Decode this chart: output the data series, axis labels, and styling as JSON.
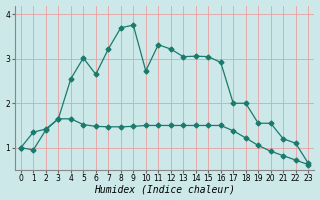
{
  "xlabel": "Humidex (Indice chaleur)",
  "bg_color": "#cce8e8",
  "line_color": "#1a7a6e",
  "grid_color_v": "#e8a0a0",
  "grid_color_h": "#e8a0a0",
  "xlim": [
    -0.5,
    23.5
  ],
  "ylim": [
    0.5,
    4.2
  ],
  "yticks": [
    1,
    2,
    3,
    4
  ],
  "xticks": [
    0,
    1,
    2,
    3,
    4,
    5,
    6,
    7,
    8,
    9,
    10,
    11,
    12,
    13,
    14,
    15,
    16,
    17,
    18,
    19,
    20,
    21,
    22,
    23
  ],
  "line1_x": [
    0,
    1,
    2,
    3,
    4,
    5,
    6,
    7,
    8,
    9,
    10,
    11,
    12,
    13,
    14,
    15,
    16,
    17,
    18,
    19,
    20,
    21,
    22,
    23
  ],
  "line1_y": [
    1.0,
    0.95,
    1.4,
    1.65,
    2.55,
    3.02,
    2.65,
    3.22,
    3.7,
    3.76,
    2.73,
    3.32,
    3.22,
    3.05,
    3.06,
    3.05,
    2.92,
    2.0,
    2.0,
    1.55,
    1.55,
    1.2,
    1.1,
    0.65
  ],
  "line2_x": [
    0,
    1,
    2,
    3,
    4,
    5,
    6,
    7,
    8,
    9,
    10,
    11,
    12,
    13,
    14,
    15,
    16,
    17,
    18,
    19,
    20,
    21,
    22,
    23
  ],
  "line2_y": [
    1.0,
    1.35,
    1.42,
    1.65,
    1.65,
    1.52,
    1.48,
    1.47,
    1.47,
    1.48,
    1.5,
    1.5,
    1.5,
    1.5,
    1.5,
    1.5,
    1.5,
    1.38,
    1.22,
    1.05,
    0.92,
    0.82,
    0.72,
    0.62
  ],
  "marker": "D",
  "markersize": 2.5,
  "linewidth": 0.9,
  "xlabel_fontsize": 7,
  "tick_fontsize": 5.5,
  "ylabel_fontsize": 6
}
